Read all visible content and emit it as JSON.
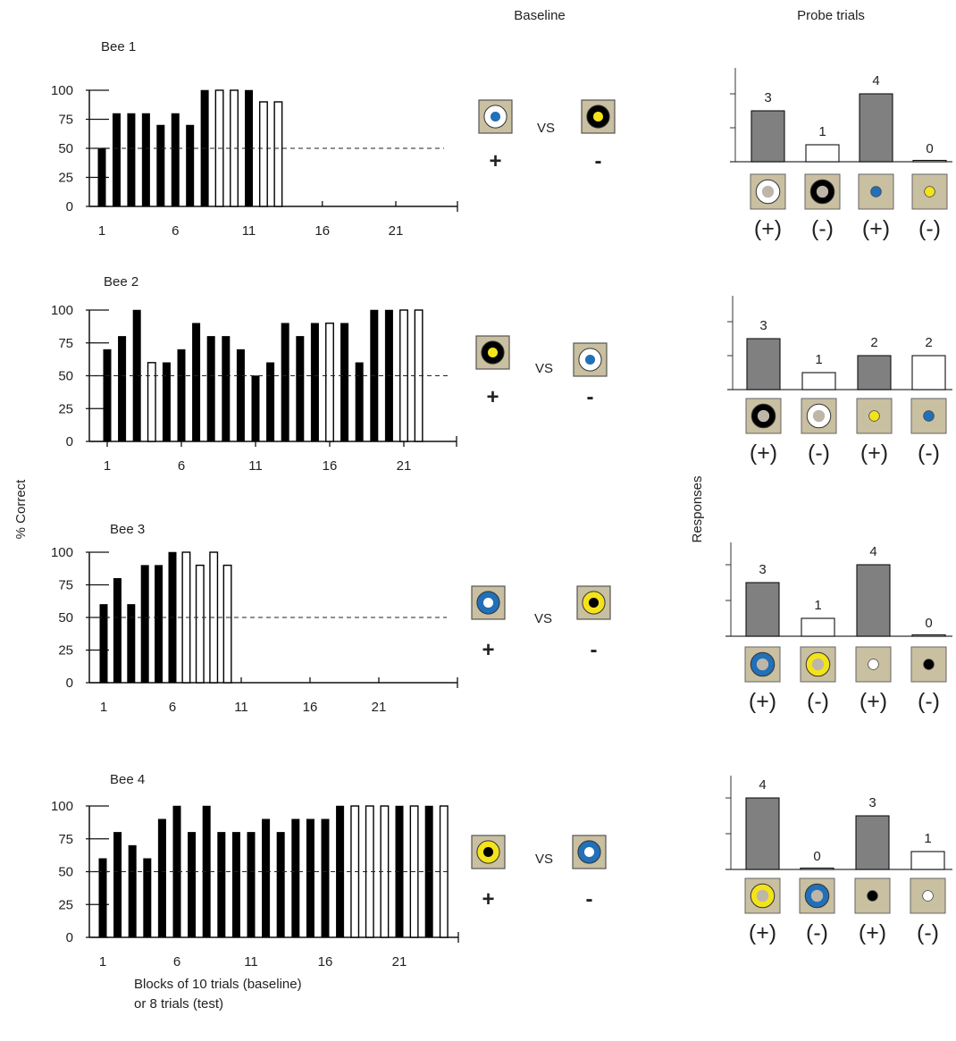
{
  "headers": {
    "baseline": "Baseline",
    "probe": "Probe trials"
  },
  "ylabel_left": "% Correct",
  "ylabel_right": "Responses",
  "xlabel": [
    "Blocks of 10 trials (baseline)",
    "or 8 trials (test)"
  ],
  "vs_label": "VS",
  "plus": "+",
  "minus": "-",
  "probe_sign_plus": "(+)",
  "probe_sign_minus": "(-)",
  "colors": {
    "bg": "#c9bfa1",
    "blue": "#2170b8",
    "yellow": "#f3e31a",
    "gray_fill": "#bdb6a9",
    "bar_gray": "#808080"
  },
  "chart_data": [
    {
      "type": "bar",
      "name": "Bee 1",
      "ylim": [
        0,
        100
      ],
      "yticks": [
        0,
        25,
        50,
        75,
        100
      ],
      "xticks": [
        1,
        6,
        11,
        16,
        21
      ],
      "chance": 50,
      "blocks": [
        1,
        2,
        3,
        4,
        5,
        6,
        7,
        8,
        9,
        10,
        11,
        12,
        13
      ],
      "values": [
        50,
        80,
        80,
        80,
        70,
        80,
        70,
        100,
        100,
        100,
        100,
        90,
        90
      ],
      "kind": [
        "b",
        "b",
        "b",
        "b",
        "b",
        "b",
        "b",
        "b",
        "w",
        "w",
        "b",
        "w",
        "w"
      ],
      "baseline_plus": {
        "bg": "#c9bfa1",
        "outer": "#ffffff",
        "inner": "#2170b8"
      },
      "baseline_minus": {
        "bg": "#c9bfa1",
        "outer": "#000000",
        "inner": "#f3e31a"
      },
      "probe": {
        "values": [
          3,
          1,
          4,
          0
        ],
        "fills": [
          "gray",
          "white",
          "gray",
          "white"
        ],
        "icons": [
          {
            "outer": "#ffffff",
            "inner": "#bdb6a9",
            "sign": "+"
          },
          {
            "outer": "#000000",
            "inner": "#bdb6a9",
            "sign": "-"
          },
          {
            "outer": null,
            "inner": "#2170b8",
            "sign": "+"
          },
          {
            "outer": null,
            "inner": "#f3e31a",
            "sign": "-"
          }
        ]
      }
    },
    {
      "type": "bar",
      "name": "Bee 2",
      "ylim": [
        0,
        100
      ],
      "yticks": [
        0,
        25,
        50,
        75,
        100
      ],
      "xticks": [
        1,
        6,
        11,
        16,
        21
      ],
      "chance": 50,
      "blocks": [
        1,
        2,
        3,
        4,
        5,
        6,
        7,
        8,
        9,
        10,
        11,
        12,
        13,
        14,
        15,
        16,
        17,
        18,
        19,
        20,
        21,
        22
      ],
      "values": [
        70,
        80,
        100,
        60,
        60,
        70,
        90,
        80,
        80,
        70,
        50,
        60,
        90,
        80,
        90,
        90,
        90,
        60,
        100,
        100,
        100,
        100
      ],
      "kind": [
        "b",
        "b",
        "b",
        "w",
        "b",
        "b",
        "b",
        "b",
        "b",
        "b",
        "b",
        "b",
        "b",
        "b",
        "b",
        "w",
        "b",
        "b",
        "b",
        "b",
        "w",
        "w"
      ],
      "baseline_plus": {
        "bg": "#c9bfa1",
        "outer": "#000000",
        "inner": "#f3e31a"
      },
      "baseline_minus": {
        "bg": "#c9bfa1",
        "outer": "#ffffff",
        "inner": "#2170b8"
      },
      "probe": {
        "values": [
          3,
          1,
          2,
          2
        ],
        "fills": [
          "gray",
          "white",
          "gray",
          "white"
        ],
        "icons": [
          {
            "outer": "#000000",
            "inner": "#bdb6a9",
            "sign": "+"
          },
          {
            "outer": "#ffffff",
            "inner": "#bdb6a9",
            "sign": "-"
          },
          {
            "outer": null,
            "inner": "#f3e31a",
            "sign": "+"
          },
          {
            "outer": null,
            "inner": "#2170b8",
            "sign": "-"
          }
        ]
      }
    },
    {
      "type": "bar",
      "name": "Bee 3",
      "ylim": [
        0,
        100
      ],
      "yticks": [
        0,
        25,
        50,
        75,
        100
      ],
      "xticks": [
        1,
        6,
        11,
        16,
        21
      ],
      "chance": 50,
      "blocks": [
        1,
        2,
        3,
        4,
        5,
        6,
        7,
        8,
        9,
        10
      ],
      "values": [
        60,
        80,
        60,
        90,
        90,
        100,
        100,
        90,
        100,
        90
      ],
      "kind": [
        "b",
        "b",
        "b",
        "b",
        "b",
        "b",
        "w",
        "w",
        "w",
        "w"
      ],
      "baseline_plus": {
        "bg": "#c9bfa1",
        "outer": "#2170b8",
        "inner": "#ffffff"
      },
      "baseline_minus": {
        "bg": "#c9bfa1",
        "outer": "#f3e31a",
        "inner": "#000000"
      },
      "probe": {
        "values": [
          3,
          1,
          4,
          0
        ],
        "fills": [
          "gray",
          "white",
          "gray",
          "white"
        ],
        "icons": [
          {
            "outer": "#2170b8",
            "inner": "#bdb6a9",
            "sign": "+"
          },
          {
            "outer": "#f3e31a",
            "inner": "#bdb6a9",
            "sign": "-"
          },
          {
            "outer": null,
            "inner": "#ffffff",
            "sign": "+"
          },
          {
            "outer": null,
            "inner": "#000000",
            "sign": "-"
          }
        ]
      }
    },
    {
      "type": "bar",
      "name": "Bee 4",
      "ylim": [
        0,
        100
      ],
      "yticks": [
        0,
        25,
        50,
        75,
        100
      ],
      "xticks": [
        1,
        6,
        11,
        16,
        21
      ],
      "chance": 50,
      "blocks": [
        1,
        2,
        3,
        4,
        5,
        6,
        7,
        8,
        9,
        10,
        11,
        12,
        13,
        14,
        15,
        16,
        17,
        18,
        19,
        20,
        21,
        22,
        23,
        24
      ],
      "values": [
        60,
        80,
        70,
        60,
        90,
        100,
        80,
        100,
        80,
        80,
        80,
        90,
        80,
        90,
        90,
        90,
        100,
        100,
        100,
        100,
        100,
        100,
        100,
        100
      ],
      "kind": [
        "b",
        "b",
        "b",
        "b",
        "b",
        "b",
        "b",
        "b",
        "b",
        "b",
        "b",
        "b",
        "b",
        "b",
        "b",
        "b",
        "b",
        "w",
        "w",
        "w",
        "b",
        "w",
        "b",
        "w"
      ],
      "baseline_plus": {
        "bg": "#c9bfa1",
        "outer": "#f3e31a",
        "inner": "#000000"
      },
      "baseline_minus": {
        "bg": "#c9bfa1",
        "outer": "#2170b8",
        "inner": "#ffffff"
      },
      "probe": {
        "values": [
          4,
          0,
          3,
          1
        ],
        "fills": [
          "gray",
          "white",
          "gray",
          "white"
        ],
        "icons": [
          {
            "outer": "#f3e31a",
            "inner": "#bdb6a9",
            "sign": "+"
          },
          {
            "outer": "#2170b8",
            "inner": "#bdb6a9",
            "sign": "-"
          },
          {
            "outer": null,
            "inner": "#000000",
            "sign": "+"
          },
          {
            "outer": null,
            "inner": "#ffffff",
            "sign": "-"
          }
        ]
      }
    }
  ]
}
